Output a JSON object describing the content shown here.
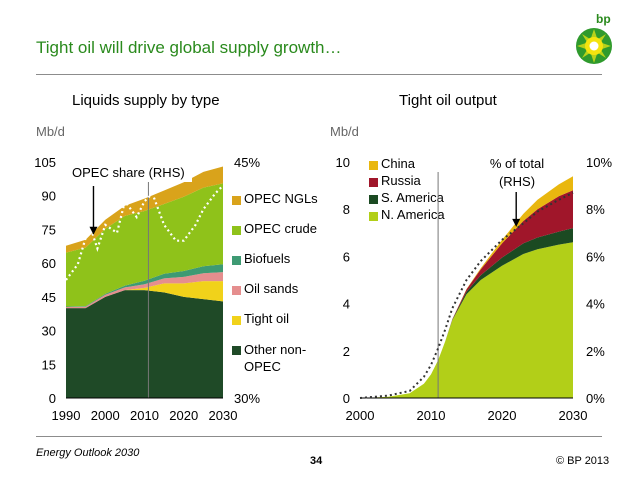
{
  "slide": {
    "title": "Tight oil will drive global supply growth…",
    "footer_left": "Energy Outlook 2030",
    "page_number": "34",
    "copyright": "© BP 2013",
    "logo_text": "bp"
  },
  "chart_data": [
    {
      "type": "area",
      "stacked": true,
      "title": "Liquids supply by type",
      "ylabel": "Mb/d",
      "ylim": [
        0,
        105
      ],
      "yticks": [
        "0",
        "15",
        "30",
        "45",
        "60",
        "75",
        "90",
        "105"
      ],
      "y2lim": [
        30,
        45
      ],
      "y2ticks": [
        "30%",
        "45%"
      ],
      "xlim": [
        1990,
        2030
      ],
      "xticks": [
        "1990",
        "2000",
        "2010",
        "2020",
        "2030"
      ],
      "divider_year": 2011,
      "x": [
        1990,
        1995,
        2000,
        2005,
        2010,
        2015,
        2020,
        2025,
        2030
      ],
      "series": [
        {
          "name": "Other non-OPEC",
          "color": "#1f4a27",
          "values": [
            40,
            40,
            45,
            48,
            48,
            47,
            45,
            44,
            43
          ]
        },
        {
          "name": "Tight oil",
          "color": "#f1d21a",
          "values": [
            0,
            0,
            0,
            0,
            1,
            4,
            6,
            8,
            9
          ]
        },
        {
          "name": "Oil sands",
          "color": "#e58e8e",
          "values": [
            0.5,
            0.6,
            0.9,
            1.2,
            1.6,
            2.2,
            2.9,
            3.5,
            4
          ]
        },
        {
          "name": "Biofuels",
          "color": "#3e9a73",
          "values": [
            0.2,
            0.3,
            0.4,
            0.8,
            1.6,
            2.1,
            2.6,
            3.1,
            3.5
          ]
        },
        {
          "name": "OPEC crude",
          "color": "#8fc21a",
          "values": [
            24,
            26,
            29,
            31,
            31,
            31,
            33,
            35,
            36
          ]
        },
        {
          "name": "OPEC NGLs",
          "color": "#d9a31b",
          "values": [
            3,
            3.5,
            4,
            4.5,
            5.5,
            6,
            6.5,
            7,
            7.5
          ]
        }
      ],
      "opec_share_line": {
        "name": "OPEC share (RHS)",
        "color": "#ffffff",
        "x": [
          1990,
          1993,
          1996,
          1998,
          2000,
          2003,
          2005,
          2008,
          2010,
          2012,
          2015,
          2018,
          2020,
          2023,
          2025,
          2028,
          2030
        ],
        "values": [
          37.5,
          38.5,
          41.0,
          39.5,
          41.0,
          40.5,
          42.5,
          41.5,
          42.5,
          43.0,
          41.0,
          40.0,
          40.0,
          41.0,
          42.0,
          43.0,
          43.5
        ]
      },
      "annotation": "OPEC share (RHS)",
      "annotation_year": 1997
    },
    {
      "type": "area",
      "stacked": true,
      "title": "Tight oil output",
      "ylabel": "Mb/d",
      "ylim": [
        0,
        10
      ],
      "yticks": [
        "0",
        "2",
        "4",
        "6",
        "8",
        "10"
      ],
      "y2lim": [
        0,
        10
      ],
      "y2ticks": [
        "0%",
        "2%",
        "4%",
        "6%",
        "8%",
        "10%"
      ],
      "xlim": [
        2000,
        2030
      ],
      "xticks": [
        "2000",
        "2010",
        "2020",
        "2030"
      ],
      "divider_year": 2011,
      "x": [
        2000,
        2004,
        2007,
        2009,
        2010,
        2011,
        2012,
        2013,
        2015,
        2017,
        2020,
        2023,
        2025,
        2028,
        2030
      ],
      "series": [
        {
          "name": "N. America",
          "color": "#b2cf18",
          "values": [
            0,
            0.05,
            0.2,
            0.6,
            1.0,
            1.6,
            2.4,
            3.3,
            4.4,
            5.0,
            5.6,
            6.1,
            6.3,
            6.5,
            6.6
          ]
        },
        {
          "name": "S. America",
          "color": "#1b4a22",
          "values": [
            0,
            0,
            0,
            0,
            0,
            0,
            0,
            0.02,
            0.1,
            0.2,
            0.35,
            0.45,
            0.5,
            0.55,
            0.6
          ]
        },
        {
          "name": "Russia",
          "color": "#a0162a",
          "values": [
            0,
            0,
            0,
            0,
            0,
            0,
            0,
            0.02,
            0.1,
            0.25,
            0.6,
            0.95,
            1.2,
            1.5,
            1.6
          ]
        },
        {
          "name": "China",
          "color": "#e9b70f",
          "values": [
            0,
            0,
            0,
            0,
            0,
            0,
            0,
            0,
            0.02,
            0.05,
            0.15,
            0.3,
            0.4,
            0.5,
            0.6
          ]
        }
      ],
      "share_line": {
        "name": "% of total (RHS)",
        "color": "#333333",
        "x": [
          2000,
          2004,
          2007,
          2009,
          2010,
          2011,
          2012,
          2013,
          2015,
          2017,
          2020,
          2023,
          2025,
          2028,
          2030
        ],
        "values": [
          0,
          0.1,
          0.3,
          0.9,
          1.4,
          2.1,
          2.9,
          3.8,
          5.0,
          5.8,
          6.7,
          7.4,
          7.9,
          8.4,
          8.7
        ]
      },
      "annotation": "% of total (RHS)",
      "annotation_year": 2022
    }
  ]
}
